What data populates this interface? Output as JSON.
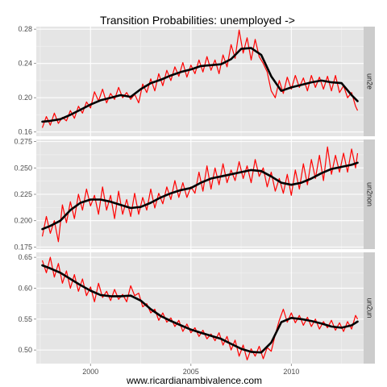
{
  "chart_data": {
    "type": "line",
    "title": "Transition Probabilities: unemployed ->",
    "caption": "www.ricardianambivalence.com",
    "xlabel": "",
    "ylabel": "",
    "x_ticks": [
      2000,
      2005,
      2010
    ],
    "xlim": [
      1997.3,
      2013.6
    ],
    "grid": true,
    "series_colors": {
      "raw": "#ff0000",
      "smooth": "#000000"
    },
    "panels": [
      {
        "strip": "un2e",
        "ylim": [
          0.155,
          0.283
        ],
        "y_ticks": [
          0.16,
          0.2,
          0.24,
          0.28
        ],
        "y_tick_labels": [
          "0.16",
          "0.20",
          "0.24",
          "0.28"
        ],
        "smooth_x": [
          1997.6,
          1998.0,
          1998.5,
          1999.0,
          1999.5,
          2000.0,
          2000.5,
          2001.0,
          2001.5,
          2002.0,
          2002.5,
          2003.0,
          2003.5,
          2004.0,
          2004.5,
          2005.0,
          2005.5,
          2006.0,
          2006.5,
          2007.0,
          2007.5,
          2008.0,
          2008.5,
          2009.0,
          2009.5,
          2010.0,
          2010.5,
          2011.0,
          2011.5,
          2012.0,
          2012.5,
          2013.0,
          2013.3
        ],
        "smooth_y": [
          0.172,
          0.173,
          0.175,
          0.18,
          0.186,
          0.192,
          0.197,
          0.2,
          0.203,
          0.201,
          0.21,
          0.217,
          0.221,
          0.226,
          0.23,
          0.233,
          0.237,
          0.238,
          0.239,
          0.245,
          0.257,
          0.258,
          0.25,
          0.225,
          0.208,
          0.212,
          0.215,
          0.218,
          0.22,
          0.218,
          0.217,
          0.203,
          0.196
        ],
        "raw_x": [
          1997.6,
          1997.8,
          1998.0,
          1998.2,
          1998.4,
          1998.6,
          1998.8,
          1999.0,
          1999.2,
          1999.4,
          1999.6,
          1999.8,
          2000.0,
          2000.2,
          2000.4,
          2000.6,
          2000.8,
          2001.0,
          2001.2,
          2001.4,
          2001.6,
          2001.8,
          2002.0,
          2002.2,
          2002.4,
          2002.6,
          2002.8,
          2003.0,
          2003.2,
          2003.4,
          2003.6,
          2003.8,
          2004.0,
          2004.2,
          2004.4,
          2004.6,
          2004.8,
          2005.0,
          2005.2,
          2005.4,
          2005.6,
          2005.8,
          2006.0,
          2006.2,
          2006.4,
          2006.6,
          2006.8,
          2007.0,
          2007.2,
          2007.4,
          2007.6,
          2007.8,
          2008.0,
          2008.2,
          2008.4,
          2008.6,
          2008.8,
          2009.0,
          2009.2,
          2009.4,
          2009.6,
          2009.8,
          2010.0,
          2010.2,
          2010.4,
          2010.6,
          2010.8,
          2011.0,
          2011.2,
          2011.4,
          2011.6,
          2011.8,
          2012.0,
          2012.2,
          2012.4,
          2012.6,
          2012.8,
          2013.0,
          2013.2,
          2013.3
        ],
        "raw_y": [
          0.165,
          0.178,
          0.168,
          0.182,
          0.17,
          0.177,
          0.173,
          0.185,
          0.176,
          0.19,
          0.182,
          0.195,
          0.188,
          0.207,
          0.196,
          0.21,
          0.194,
          0.205,
          0.198,
          0.212,
          0.2,
          0.206,
          0.198,
          0.204,
          0.194,
          0.216,
          0.206,
          0.222,
          0.208,
          0.228,
          0.214,
          0.232,
          0.22,
          0.236,
          0.225,
          0.241,
          0.224,
          0.238,
          0.228,
          0.244,
          0.23,
          0.248,
          0.232,
          0.244,
          0.228,
          0.25,
          0.236,
          0.262,
          0.246,
          0.279,
          0.252,
          0.27,
          0.244,
          0.268,
          0.248,
          0.24,
          0.23,
          0.208,
          0.2,
          0.22,
          0.205,
          0.224,
          0.21,
          0.226,
          0.212,
          0.223,
          0.208,
          0.226,
          0.212,
          0.224,
          0.21,
          0.225,
          0.208,
          0.226,
          0.206,
          0.214,
          0.2,
          0.206,
          0.19,
          0.185
        ]
      },
      {
        "strip": "un2non",
        "ylim": [
          0.173,
          0.277
        ],
        "y_ticks": [
          0.175,
          0.2,
          0.225,
          0.25,
          0.275
        ],
        "y_tick_labels": [
          "0.175",
          "0.200",
          "0.225",
          "0.250",
          "0.275"
        ],
        "smooth_x": [
          1997.6,
          1998.0,
          1998.5,
          1999.0,
          1999.5,
          2000.0,
          2000.5,
          2001.0,
          2001.5,
          2002.0,
          2002.5,
          2003.0,
          2003.5,
          2004.0,
          2004.5,
          2005.0,
          2005.5,
          2006.0,
          2006.5,
          2007.0,
          2007.5,
          2008.0,
          2008.5,
          2009.0,
          2009.5,
          2010.0,
          2010.5,
          2011.0,
          2011.5,
          2012.0,
          2012.5,
          2013.0,
          2013.3
        ],
        "smooth_y": [
          0.192,
          0.195,
          0.2,
          0.21,
          0.217,
          0.22,
          0.22,
          0.218,
          0.215,
          0.212,
          0.213,
          0.217,
          0.222,
          0.226,
          0.229,
          0.231,
          0.236,
          0.24,
          0.242,
          0.244,
          0.246,
          0.248,
          0.247,
          0.242,
          0.236,
          0.234,
          0.236,
          0.24,
          0.245,
          0.249,
          0.251,
          0.253,
          0.255
        ],
        "raw_x": [
          1997.6,
          1997.8,
          1998.0,
          1998.2,
          1998.4,
          1998.6,
          1998.8,
          1999.0,
          1999.2,
          1999.4,
          1999.6,
          1999.8,
          2000.0,
          2000.2,
          2000.4,
          2000.6,
          2000.8,
          2001.0,
          2001.2,
          2001.4,
          2001.6,
          2001.8,
          2002.0,
          2002.2,
          2002.4,
          2002.6,
          2002.8,
          2003.0,
          2003.2,
          2003.4,
          2003.6,
          2003.8,
          2004.0,
          2004.2,
          2004.4,
          2004.6,
          2004.8,
          2005.0,
          2005.2,
          2005.4,
          2005.6,
          2005.8,
          2006.0,
          2006.2,
          2006.4,
          2006.6,
          2006.8,
          2007.0,
          2007.2,
          2007.4,
          2007.6,
          2007.8,
          2008.0,
          2008.2,
          2008.4,
          2008.6,
          2008.8,
          2009.0,
          2009.2,
          2009.4,
          2009.6,
          2009.8,
          2010.0,
          2010.2,
          2010.4,
          2010.6,
          2010.8,
          2011.0,
          2011.2,
          2011.4,
          2011.6,
          2011.8,
          2012.0,
          2012.2,
          2012.4,
          2012.6,
          2012.8,
          2013.0,
          2013.2,
          2013.3
        ],
        "raw_y": [
          0.185,
          0.204,
          0.188,
          0.2,
          0.18,
          0.215,
          0.198,
          0.218,
          0.202,
          0.225,
          0.21,
          0.23,
          0.214,
          0.224,
          0.206,
          0.232,
          0.21,
          0.224,
          0.202,
          0.228,
          0.206,
          0.22,
          0.204,
          0.226,
          0.206,
          0.222,
          0.21,
          0.23,
          0.212,
          0.226,
          0.216,
          0.232,
          0.22,
          0.238,
          0.222,
          0.236,
          0.222,
          0.232,
          0.226,
          0.246,
          0.228,
          0.252,
          0.23,
          0.25,
          0.234,
          0.254,
          0.236,
          0.248,
          0.238,
          0.256,
          0.24,
          0.252,
          0.236,
          0.258,
          0.242,
          0.25,
          0.232,
          0.246,
          0.228,
          0.24,
          0.226,
          0.244,
          0.224,
          0.248,
          0.23,
          0.254,
          0.234,
          0.258,
          0.24,
          0.262,
          0.238,
          0.27,
          0.244,
          0.262,
          0.246,
          0.264,
          0.246,
          0.268,
          0.25,
          0.264
        ]
      },
      {
        "strip": "un2un",
        "ylim": [
          0.478,
          0.658
        ],
        "y_ticks": [
          0.5,
          0.55,
          0.6,
          0.65
        ],
        "y_tick_labels": [
          "0.50",
          "0.55",
          "0.60",
          "0.65"
        ],
        "smooth_x": [
          1997.6,
          1998.0,
          1998.5,
          1999.0,
          1999.5,
          2000.0,
          2000.5,
          2001.0,
          2001.5,
          2002.0,
          2002.5,
          2003.0,
          2003.5,
          2004.0,
          2004.5,
          2005.0,
          2005.5,
          2006.0,
          2006.5,
          2007.0,
          2007.5,
          2008.0,
          2008.5,
          2009.0,
          2009.5,
          2010.0,
          2010.5,
          2011.0,
          2011.5,
          2012.0,
          2012.5,
          2013.0,
          2013.3
        ],
        "smooth_y": [
          0.637,
          0.632,
          0.625,
          0.615,
          0.605,
          0.596,
          0.589,
          0.587,
          0.587,
          0.588,
          0.58,
          0.566,
          0.555,
          0.547,
          0.54,
          0.533,
          0.528,
          0.523,
          0.518,
          0.51,
          0.502,
          0.497,
          0.496,
          0.512,
          0.545,
          0.552,
          0.55,
          0.547,
          0.543,
          0.538,
          0.536,
          0.54,
          0.546
        ],
        "raw_x": [
          1997.6,
          1997.8,
          1998.0,
          1998.2,
          1998.4,
          1998.6,
          1998.8,
          1999.0,
          1999.2,
          1999.4,
          1999.6,
          1999.8,
          2000.0,
          2000.2,
          2000.4,
          2000.6,
          2000.8,
          2001.0,
          2001.2,
          2001.4,
          2001.6,
          2001.8,
          2002.0,
          2002.2,
          2002.4,
          2002.6,
          2002.8,
          2003.0,
          2003.2,
          2003.4,
          2003.6,
          2003.8,
          2004.0,
          2004.2,
          2004.4,
          2004.6,
          2004.8,
          2005.0,
          2005.2,
          2005.4,
          2005.6,
          2005.8,
          2006.0,
          2006.2,
          2006.4,
          2006.6,
          2006.8,
          2007.0,
          2007.2,
          2007.4,
          2007.6,
          2007.8,
          2008.0,
          2008.2,
          2008.4,
          2008.6,
          2008.8,
          2009.0,
          2009.2,
          2009.4,
          2009.6,
          2009.8,
          2010.0,
          2010.2,
          2010.4,
          2010.6,
          2010.8,
          2011.0,
          2011.2,
          2011.4,
          2011.6,
          2011.8,
          2012.0,
          2012.2,
          2012.4,
          2012.6,
          2012.8,
          2013.0,
          2013.2,
          2013.3
        ],
        "raw_y": [
          0.645,
          0.625,
          0.65,
          0.618,
          0.64,
          0.608,
          0.628,
          0.6,
          0.622,
          0.595,
          0.615,
          0.588,
          0.602,
          0.578,
          0.608,
          0.585,
          0.595,
          0.58,
          0.598,
          0.582,
          0.59,
          0.578,
          0.604,
          0.588,
          0.592,
          0.57,
          0.575,
          0.56,
          0.566,
          0.548,
          0.56,
          0.545,
          0.552,
          0.538,
          0.548,
          0.53,
          0.542,
          0.528,
          0.536,
          0.522,
          0.532,
          0.518,
          0.526,
          0.515,
          0.528,
          0.508,
          0.522,
          0.5,
          0.516,
          0.49,
          0.508,
          0.484,
          0.502,
          0.49,
          0.506,
          0.486,
          0.504,
          0.498,
          0.525,
          0.548,
          0.566,
          0.545,
          0.56,
          0.544,
          0.556,
          0.54,
          0.553,
          0.538,
          0.55,
          0.534,
          0.546,
          0.536,
          0.548,
          0.532,
          0.544,
          0.53,
          0.546,
          0.534,
          0.556,
          0.55
        ]
      }
    ]
  }
}
